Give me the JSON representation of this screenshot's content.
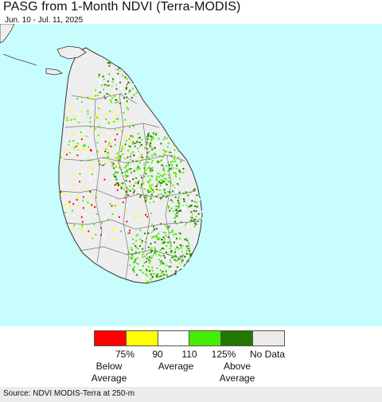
{
  "title": "PASG from 1-Month NDVI (Terra-MODIS)",
  "subtitle": "Jun. 10 - Jul. 11, 2025",
  "colors": {
    "ocean": "#c8fdfd",
    "land_base": "#eeeeee",
    "border": "#555555"
  },
  "legend": {
    "swatches": [
      {
        "color": "#ff0000"
      },
      {
        "color": "#ffff00"
      },
      {
        "color": "#ffffff"
      },
      {
        "color": "#44ee00"
      },
      {
        "color": "#227700"
      },
      {
        "color": "#eeeaea"
      }
    ],
    "ticks": [
      "75%",
      "90",
      "110",
      "125%"
    ],
    "no_data": "No Data",
    "categories": [
      "Below\nAverage",
      "Average",
      "Above\nAverage"
    ]
  },
  "source": "Source: NDVI MODIS-Terra at 250-m"
}
